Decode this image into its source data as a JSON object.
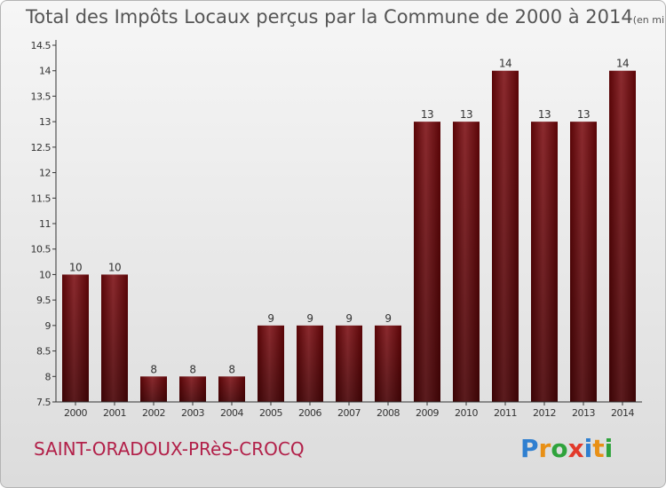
{
  "title": "Total des Impôts Locaux perçus par la Commune de 2000 à 2014",
  "title_unit": "(en milliers d'€)",
  "commune": "SAINT-ORADOUX-PRèS-CROCQ",
  "logo": {
    "text": "Proxiti",
    "letters": [
      {
        "ch": "P",
        "color": "#2f7fd0"
      },
      {
        "ch": "r",
        "color": "#e89016"
      },
      {
        "ch": "o",
        "color": "#2fa33c"
      },
      {
        "ch": "x",
        "color": "#e23a2b"
      },
      {
        "ch": "i",
        "color": "#2f7fd0"
      },
      {
        "ch": "t",
        "color": "#e89016"
      },
      {
        "ch": "i",
        "color": "#2fa33c"
      }
    ]
  },
  "colors": {
    "bar": "#7b1518",
    "bar_light": "#8b2a2e",
    "bar_dark": "#5a0507"
  },
  "chart_data": {
    "type": "bar",
    "title": "Total des Impôts Locaux perçus par la Commune de 2000 à 2014",
    "xlabel": "",
    "ylabel": "",
    "categories": [
      "2000",
      "2001",
      "2002",
      "2003",
      "2004",
      "2005",
      "2006",
      "2007",
      "2008",
      "2009",
      "2010",
      "2011",
      "2012",
      "2013",
      "2014"
    ],
    "values": [
      10,
      10,
      8,
      8,
      8,
      9,
      9,
      9,
      9,
      13,
      13,
      14,
      13,
      13,
      14
    ],
    "labels": [
      "10",
      "10",
      "8",
      "8",
      "8",
      "9",
      "9",
      "9",
      "9",
      "13",
      "13",
      "14",
      "13",
      "13",
      "14"
    ],
    "ylim": [
      7.5,
      14.5
    ],
    "yticks": [
      7.5,
      8,
      8.5,
      9,
      9.5,
      10,
      10.5,
      11,
      11.5,
      12,
      12.5,
      13,
      13.5,
      14,
      14.5
    ],
    "ytick_labels": [
      "7.5",
      "8",
      "8.5",
      "9",
      "9.5",
      "10",
      "10.5",
      "11",
      "11.5",
      "12",
      "12.5",
      "13",
      "13.5",
      "14",
      "14.5"
    ],
    "grid": false
  }
}
